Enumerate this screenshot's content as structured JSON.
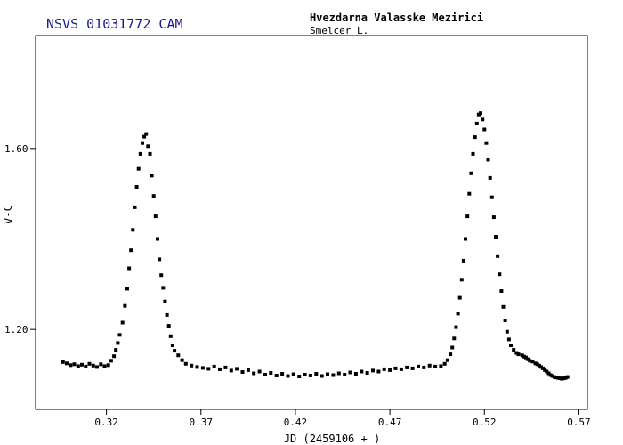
{
  "header": {
    "star_name": "NSVS 01031772 CAM",
    "observatory": "Hvezdarna Valasske Mezirici",
    "observer": "Smelcer L."
  },
  "colors": {
    "star_name": "#1a1a8c",
    "text": "#000000",
    "axes": "#000000",
    "points": "#000000"
  },
  "chart_data": {
    "type": "scatter",
    "title": "NSVS 01031772 CAM",
    "xlabel": "JD (2459106 + )",
    "ylabel": "V-C",
    "xlim": [
      0.2825,
      0.5745
    ],
    "ylim": [
      1.8495,
      1.0233
    ],
    "y_inverted": true,
    "grid": false,
    "xticks": [
      0.32,
      0.37,
      0.42,
      0.47,
      0.52,
      0.57
    ],
    "xtick_labels": [
      "0.32",
      "0.37",
      "0.42",
      "0.47",
      "0.52",
      "0.57"
    ],
    "yticks": [
      1.2,
      1.6
    ],
    "ytick_labels": [
      "1.20",
      "1.60"
    ],
    "series": [
      {
        "points": [
          [
            0.297,
            1.128
          ],
          [
            0.299,
            1.125
          ],
          [
            0.301,
            1.121
          ],
          [
            0.303,
            1.123
          ],
          [
            0.305,
            1.119
          ],
          [
            0.307,
            1.122
          ],
          [
            0.309,
            1.118
          ],
          [
            0.311,
            1.124
          ],
          [
            0.313,
            1.12
          ],
          [
            0.315,
            1.117
          ],
          [
            0.317,
            1.123
          ],
          [
            0.319,
            1.119
          ],
          [
            0.321,
            1.121
          ],
          [
            0.3225,
            1.131
          ],
          [
            0.324,
            1.141
          ],
          [
            0.325,
            1.155
          ],
          [
            0.326,
            1.17
          ],
          [
            0.327,
            1.188
          ],
          [
            0.3285,
            1.215
          ],
          [
            0.3298,
            1.252
          ],
          [
            0.331,
            1.29
          ],
          [
            0.332,
            1.335
          ],
          [
            0.333,
            1.375
          ],
          [
            0.334,
            1.42
          ],
          [
            0.335,
            1.47
          ],
          [
            0.336,
            1.515
          ],
          [
            0.337,
            1.555
          ],
          [
            0.338,
            1.588
          ],
          [
            0.339,
            1.612
          ],
          [
            0.34,
            1.626
          ],
          [
            0.341,
            1.632
          ],
          [
            0.342,
            1.605
          ],
          [
            0.343,
            1.588
          ],
          [
            0.344,
            1.54
          ],
          [
            0.345,
            1.495
          ],
          [
            0.346,
            1.45
          ],
          [
            0.347,
            1.4
          ],
          [
            0.348,
            1.355
          ],
          [
            0.349,
            1.32
          ],
          [
            0.35,
            1.292
          ],
          [
            0.351,
            1.262
          ],
          [
            0.352,
            1.232
          ],
          [
            0.353,
            1.208
          ],
          [
            0.354,
            1.185
          ],
          [
            0.355,
            1.165
          ],
          [
            0.356,
            1.153
          ],
          [
            0.358,
            1.143
          ],
          [
            0.36,
            1.132
          ],
          [
            0.362,
            1.124
          ],
          [
            0.365,
            1.12
          ],
          [
            0.368,
            1.117
          ],
          [
            0.371,
            1.115
          ],
          [
            0.374,
            1.113
          ],
          [
            0.377,
            1.118
          ],
          [
            0.38,
            1.112
          ],
          [
            0.383,
            1.116
          ],
          [
            0.386,
            1.109
          ],
          [
            0.389,
            1.113
          ],
          [
            0.392,
            1.106
          ],
          [
            0.395,
            1.11
          ],
          [
            0.398,
            1.103
          ],
          [
            0.401,
            1.107
          ],
          [
            0.404,
            1.1
          ],
          [
            0.407,
            1.104
          ],
          [
            0.41,
            1.098
          ],
          [
            0.413,
            1.102
          ],
          [
            0.416,
            1.097
          ],
          [
            0.419,
            1.101
          ],
          [
            0.422,
            1.096
          ],
          [
            0.425,
            1.1
          ],
          [
            0.428,
            1.098
          ],
          [
            0.431,
            1.102
          ],
          [
            0.434,
            1.097
          ],
          [
            0.437,
            1.101
          ],
          [
            0.44,
            1.099
          ],
          [
            0.443,
            1.103
          ],
          [
            0.446,
            1.1
          ],
          [
            0.449,
            1.105
          ],
          [
            0.452,
            1.102
          ],
          [
            0.455,
            1.107
          ],
          [
            0.458,
            1.104
          ],
          [
            0.461,
            1.109
          ],
          [
            0.464,
            1.107
          ],
          [
            0.467,
            1.112
          ],
          [
            0.47,
            1.11
          ],
          [
            0.473,
            1.114
          ],
          [
            0.476,
            1.112
          ],
          [
            0.479,
            1.116
          ],
          [
            0.482,
            1.114
          ],
          [
            0.485,
            1.118
          ],
          [
            0.488,
            1.116
          ],
          [
            0.491,
            1.12
          ],
          [
            0.494,
            1.118
          ],
          [
            0.497,
            1.119
          ],
          [
            0.499,
            1.124
          ],
          [
            0.5005,
            1.132
          ],
          [
            0.502,
            1.145
          ],
          [
            0.503,
            1.16
          ],
          [
            0.504,
            1.18
          ],
          [
            0.505,
            1.205
          ],
          [
            0.506,
            1.235
          ],
          [
            0.507,
            1.27
          ],
          [
            0.508,
            1.31
          ],
          [
            0.509,
            1.352
          ],
          [
            0.51,
            1.4
          ],
          [
            0.511,
            1.45
          ],
          [
            0.512,
            1.5
          ],
          [
            0.513,
            1.545
          ],
          [
            0.514,
            1.588
          ],
          [
            0.515,
            1.625
          ],
          [
            0.516,
            1.655
          ],
          [
            0.517,
            1.675
          ],
          [
            0.518,
            1.678
          ],
          [
            0.519,
            1.664
          ],
          [
            0.52,
            1.642
          ],
          [
            0.521,
            1.612
          ],
          [
            0.522,
            1.575
          ],
          [
            0.523,
            1.535
          ],
          [
            0.524,
            1.492
          ],
          [
            0.525,
            1.448
          ],
          [
            0.526,
            1.405
          ],
          [
            0.527,
            1.362
          ],
          [
            0.528,
            1.322
          ],
          [
            0.529,
            1.285
          ],
          [
            0.53,
            1.25
          ],
          [
            0.531,
            1.22
          ],
          [
            0.532,
            1.195
          ],
          [
            0.533,
            1.178
          ],
          [
            0.534,
            1.165
          ],
          [
            0.5355,
            1.155
          ],
          [
            0.537,
            1.148
          ],
          [
            0.538,
            1.145
          ],
          [
            0.54,
            1.143
          ],
          [
            0.541,
            1.14
          ],
          [
            0.542,
            1.138
          ],
          [
            0.543,
            1.134
          ],
          [
            0.544,
            1.131
          ],
          [
            0.5455,
            1.129
          ],
          [
            0.547,
            1.125
          ],
          [
            0.548,
            1.123
          ],
          [
            0.549,
            1.12
          ],
          [
            0.55,
            1.117
          ],
          [
            0.551,
            1.114
          ],
          [
            0.552,
            1.11
          ],
          [
            0.553,
            1.107
          ],
          [
            0.554,
            1.103
          ],
          [
            0.555,
            1.099
          ],
          [
            0.556,
            1.097
          ],
          [
            0.557,
            1.095
          ],
          [
            0.558,
            1.094
          ],
          [
            0.559,
            1.093
          ],
          [
            0.56,
            1.092
          ],
          [
            0.561,
            1.091
          ],
          [
            0.562,
            1.092
          ],
          [
            0.563,
            1.093
          ],
          [
            0.564,
            1.095
          ]
        ]
      }
    ]
  }
}
